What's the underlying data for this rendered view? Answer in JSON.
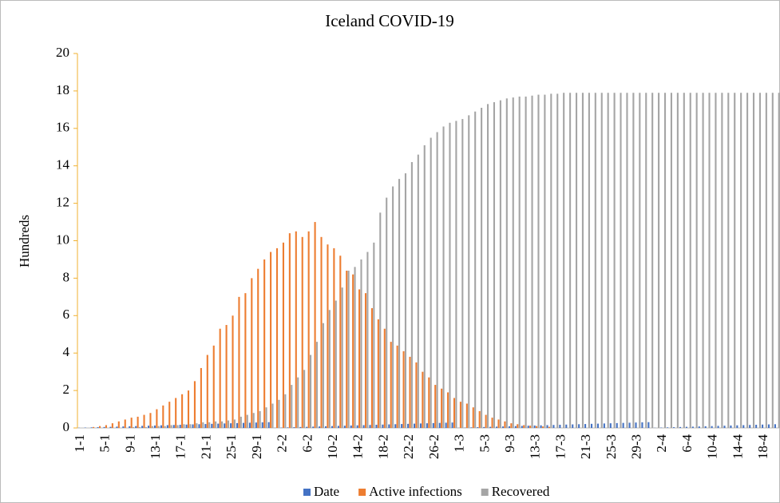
{
  "chart_data": {
    "type": "bar",
    "title": "Iceland COVID-19",
    "ylabel": "Hundreds",
    "categories": [
      "1-1",
      null,
      null,
      null,
      "5-1",
      null,
      null,
      null,
      "9-1",
      null,
      null,
      null,
      "13-1",
      null,
      null,
      null,
      "17-1",
      null,
      null,
      null,
      "21-1",
      null,
      null,
      null,
      "25-1",
      null,
      null,
      null,
      "29-1",
      null,
      null,
      null,
      "2-2",
      null,
      null,
      null,
      "6-2",
      null,
      null,
      null,
      "10-2",
      null,
      null,
      null,
      "14-2",
      null,
      null,
      null,
      "18-2",
      null,
      null,
      null,
      "22-2",
      null,
      null,
      null,
      "26-2",
      null,
      null,
      null,
      "1-3",
      null,
      null,
      null,
      "5-3",
      null,
      null,
      null,
      "9-3",
      null,
      null,
      null,
      "13-3",
      null,
      null,
      null,
      "17-3",
      null,
      null,
      null,
      "21-3",
      null,
      null,
      null,
      "25-3",
      null,
      null,
      null,
      "29-3",
      null,
      null,
      null,
      "2-4",
      null,
      null,
      null,
      "6-4",
      null,
      null,
      null,
      "10-4",
      null,
      null,
      null,
      "14-4",
      null,
      null,
      null,
      "18-4",
      null,
      null
    ],
    "series": [
      {
        "name": "Date",
        "color": "#4472c4",
        "values": [
          0.01,
          0.02,
          0.03,
          0.04,
          0.05,
          0.06,
          0.07,
          0.08,
          0.09,
          0.1,
          0.11,
          0.12,
          0.13,
          0.14,
          0.15,
          0.16,
          0.17,
          0.18,
          0.19,
          0.2,
          0.21,
          0.22,
          0.23,
          0.24,
          0.25,
          0.26,
          0.27,
          0.28,
          0.29,
          0.3,
          0.31,
          0.01,
          0.02,
          0.03,
          0.04,
          0.05,
          0.06,
          0.07,
          0.08,
          0.09,
          0.1,
          0.11,
          0.12,
          0.13,
          0.14,
          0.15,
          0.16,
          0.17,
          0.18,
          0.19,
          0.2,
          0.21,
          0.22,
          0.23,
          0.24,
          0.25,
          0.26,
          0.27,
          0.28,
          0.29,
          0.01,
          0.02,
          0.03,
          0.04,
          0.05,
          0.06,
          0.07,
          0.08,
          0.09,
          0.1,
          0.11,
          0.12,
          0.13,
          0.14,
          0.15,
          0.16,
          0.17,
          0.18,
          0.19,
          0.2,
          0.21,
          0.22,
          0.23,
          0.24,
          0.25,
          0.26,
          0.27,
          0.28,
          0.29,
          0.3,
          0.31,
          0.01,
          0.02,
          0.03,
          0.04,
          0.05,
          0.06,
          0.07,
          0.08,
          0.09,
          0.1,
          0.11,
          0.12,
          0.13,
          0.14,
          0.15,
          0.16,
          0.17,
          0.18,
          0.19,
          0.2
        ]
      },
      {
        "name": "Active infections",
        "color": "#ed7d31",
        "values": [
          0,
          0,
          0.05,
          0.1,
          0.15,
          0.25,
          0.35,
          0.45,
          0.55,
          0.6,
          0.7,
          0.8,
          1.0,
          1.2,
          1.4,
          1.6,
          1.8,
          2.0,
          2.5,
          3.2,
          3.9,
          4.4,
          5.3,
          5.5,
          6.0,
          7.0,
          7.2,
          8.0,
          8.5,
          9.0,
          9.4,
          9.6,
          9.9,
          10.4,
          10.5,
          10.2,
          10.5,
          11.0,
          10.2,
          9.8,
          9.6,
          9.2,
          8.4,
          8.2,
          7.4,
          7.2,
          6.4,
          5.8,
          5.3,
          4.6,
          4.4,
          4.1,
          3.8,
          3.5,
          3.0,
          2.7,
          2.3,
          2.1,
          1.9,
          1.6,
          1.4,
          1.3,
          1.1,
          0.9,
          0.7,
          0.55,
          0.45,
          0.35,
          0.25,
          0.2,
          0.15,
          0.12,
          0.1,
          0.08,
          0.06,
          0,
          0,
          0,
          0,
          0,
          0,
          0,
          0,
          0,
          0,
          0,
          0,
          0,
          0,
          0,
          0,
          0,
          0,
          0,
          0,
          0,
          0,
          0,
          0,
          0,
          0,
          0,
          0,
          0,
          0,
          0,
          0,
          0,
          0,
          0,
          0
        ]
      },
      {
        "name": "Recovered",
        "color": "#a5a5a5",
        "values": [
          0,
          0,
          0,
          0,
          0,
          0,
          0,
          0,
          0.05,
          0.05,
          0.05,
          0.1,
          0.1,
          0.1,
          0.15,
          0.15,
          0.2,
          0.2,
          0.25,
          0.3,
          0.3,
          0.35,
          0.35,
          0.4,
          0.45,
          0.6,
          0.7,
          0.8,
          0.9,
          1.1,
          1.3,
          1.5,
          1.8,
          2.3,
          2.7,
          3.1,
          3.9,
          4.6,
          5.6,
          6.3,
          6.8,
          7.5,
          8.4,
          8.6,
          9.0,
          9.4,
          9.9,
          11.5,
          12.3,
          12.9,
          13.3,
          13.6,
          14.2,
          14.6,
          15.1,
          15.5,
          15.8,
          16.1,
          16.3,
          16.4,
          16.5,
          16.7,
          16.9,
          17.1,
          17.3,
          17.4,
          17.5,
          17.6,
          17.65,
          17.7,
          17.7,
          17.75,
          17.8,
          17.8,
          17.85,
          17.85,
          17.9,
          17.9,
          17.9,
          17.9,
          17.9,
          17.9,
          17.9,
          17.9,
          17.9,
          17.9,
          17.9,
          17.9,
          17.9,
          17.9,
          17.9,
          17.9,
          17.9,
          17.9,
          17.9,
          17.9,
          17.9,
          17.9,
          17.9,
          17.9,
          17.9,
          17.9,
          17.9,
          17.9,
          17.9,
          17.9,
          17.9,
          17.9,
          17.9,
          17.9,
          17.9
        ]
      }
    ],
    "ylim": [
      0,
      20
    ],
    "yticks": [
      0,
      2,
      4,
      6,
      8,
      10,
      12,
      14,
      16,
      18,
      20
    ],
    "legend": "bottom"
  }
}
